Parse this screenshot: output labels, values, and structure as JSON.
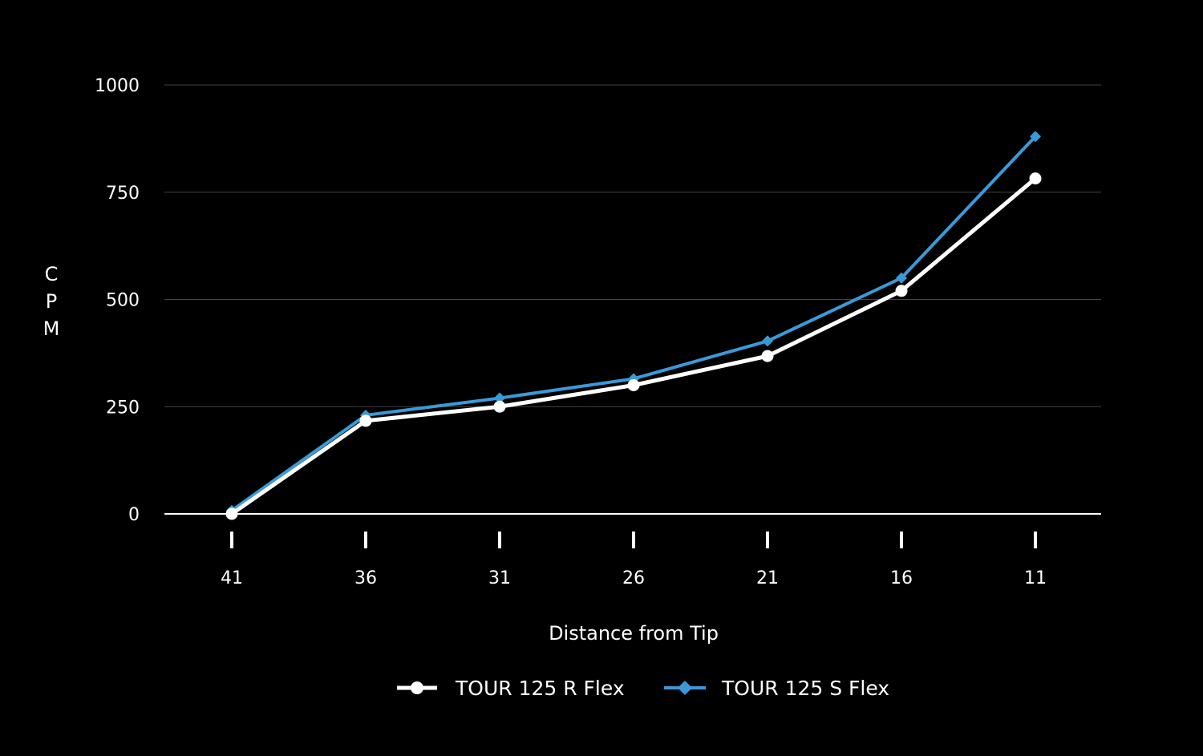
{
  "chart_data": {
    "type": "line",
    "title": "",
    "xlabel": "Distance from Tip",
    "ylabel": "CPM",
    "categories": [
      "41",
      "36",
      "31",
      "26",
      "21",
      "16",
      "11"
    ],
    "ylim": [
      0,
      1000
    ],
    "yticks": [
      "0",
      "250",
      "500",
      "750",
      "1000"
    ],
    "grid": "horizontal",
    "legend_position": "bottom-center",
    "series": [
      {
        "name": "TOUR 125 R Flex",
        "values": [
          0,
          217,
          250,
          300,
          368,
          520,
          782
        ],
        "color": "#ffffff",
        "marker": "circle"
      },
      {
        "name": "TOUR 125 S Flex",
        "values": [
          8,
          230,
          270,
          315,
          403,
          550,
          880
        ],
        "color": "#3a9ad9",
        "marker": "diamond"
      }
    ]
  }
}
